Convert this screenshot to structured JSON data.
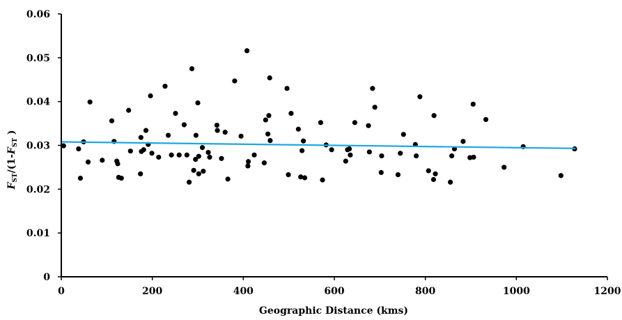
{
  "chart_data": {
    "type": "scatter",
    "title": "",
    "xlabel": "Geographic Distance (kms)",
    "ylabel": {
      "f1": "F",
      "sub1": "ST",
      "mid": "/(1-",
      "f2": "F",
      "sub2": "ST",
      "end": " )"
    },
    "xlim": [
      0,
      1200
    ],
    "ylim": [
      0,
      0.06
    ],
    "x_ticks": [
      "0",
      "200",
      "400",
      "600",
      "800",
      "1000",
      "1200"
    ],
    "y_ticks": [
      "0",
      "0.01",
      "0.02",
      "0.03",
      "0.04",
      "0.05",
      "0.06"
    ],
    "grid": false,
    "legend": "none",
    "colors": {
      "points": "#000000",
      "trendline": "#1ea7e1",
      "axis": "#000000"
    },
    "trendline": {
      "x": [
        0,
        1130
      ],
      "y": [
        0.0308,
        0.0293
      ]
    },
    "points": [
      [
        5,
        0.0299
      ],
      [
        38,
        0.0292
      ],
      [
        42,
        0.0225
      ],
      [
        49,
        0.0308
      ],
      [
        59,
        0.0262
      ],
      [
        63,
        0.0399
      ],
      [
        90,
        0.0266
      ],
      [
        111,
        0.0356
      ],
      [
        116,
        0.0309
      ],
      [
        122,
        0.0264
      ],
      [
        124,
        0.0258
      ],
      [
        126,
        0.0227
      ],
      [
        132,
        0.0225
      ],
      [
        148,
        0.038
      ],
      [
        152,
        0.0287
      ],
      [
        174,
        0.0235
      ],
      [
        175,
        0.0318
      ],
      [
        176,
        0.0286
      ],
      [
        181,
        0.029
      ],
      [
        186,
        0.0334
      ],
      [
        191,
        0.0302
      ],
      [
        196,
        0.0413
      ],
      [
        199,
        0.0282
      ],
      [
        214,
        0.0273
      ],
      [
        228,
        0.0435
      ],
      [
        235,
        0.0323
      ],
      [
        242,
        0.0278
      ],
      [
        251,
        0.0373
      ],
      [
        259,
        0.0278
      ],
      [
        270,
        0.0347
      ],
      [
        276,
        0.0278
      ],
      [
        281,
        0.0216
      ],
      [
        287,
        0.0475
      ],
      [
        291,
        0.0243
      ],
      [
        295,
        0.0268
      ],
      [
        296,
        0.0323
      ],
      [
        300,
        0.0397
      ],
      [
        302,
        0.0235
      ],
      [
        302,
        0.0275
      ],
      [
        310,
        0.0295
      ],
      [
        312,
        0.0241
      ],
      [
        323,
        0.0284
      ],
      [
        326,
        0.0273
      ],
      [
        342,
        0.0346
      ],
      [
        343,
        0.0334
      ],
      [
        352,
        0.027
      ],
      [
        360,
        0.033
      ],
      [
        366,
        0.0223
      ],
      [
        381,
        0.0447
      ],
      [
        395,
        0.0321
      ],
      [
        408,
        0.0516
      ],
      [
        410,
        0.0253
      ],
      [
        411,
        0.0263
      ],
      [
        424,
        0.0278
      ],
      [
        446,
        0.026
      ],
      [
        449,
        0.0358
      ],
      [
        454,
        0.0326
      ],
      [
        456,
        0.0368
      ],
      [
        458,
        0.0454
      ],
      [
        459,
        0.0311
      ],
      [
        496,
        0.043
      ],
      [
        499,
        0.0233
      ],
      [
        505,
        0.0373
      ],
      [
        521,
        0.0337
      ],
      [
        526,
        0.0228
      ],
      [
        529,
        0.0288
      ],
      [
        532,
        0.031
      ],
      [
        535,
        0.0226
      ],
      [
        570,
        0.0352
      ],
      [
        574,
        0.0221
      ],
      [
        582,
        0.0301
      ],
      [
        594,
        0.029
      ],
      [
        625,
        0.0264
      ],
      [
        629,
        0.029
      ],
      [
        633,
        0.0292
      ],
      [
        635,
        0.0278
      ],
      [
        645,
        0.0352
      ],
      [
        675,
        0.0345
      ],
      [
        677,
        0.0285
      ],
      [
        684,
        0.043
      ],
      [
        689,
        0.0387
      ],
      [
        703,
        0.0238
      ],
      [
        704,
        0.0276
      ],
      [
        740,
        0.0233
      ],
      [
        745,
        0.0282
      ],
      [
        752,
        0.0325
      ],
      [
        778,
        0.0302
      ],
      [
        780,
        0.0276
      ],
      [
        788,
        0.0411
      ],
      [
        807,
        0.0242
      ],
      [
        818,
        0.0222
      ],
      [
        819,
        0.0368
      ],
      [
        822,
        0.0235
      ],
      [
        855,
        0.0216
      ],
      [
        858,
        0.0276
      ],
      [
        864,
        0.0292
      ],
      [
        883,
        0.0309
      ],
      [
        898,
        0.0272
      ],
      [
        905,
        0.0394
      ],
      [
        906,
        0.0273
      ],
      [
        933,
        0.0359
      ],
      [
        973,
        0.025
      ],
      [
        1015,
        0.0297
      ],
      [
        1098,
        0.0231
      ],
      [
        1128,
        0.0292
      ]
    ]
  }
}
